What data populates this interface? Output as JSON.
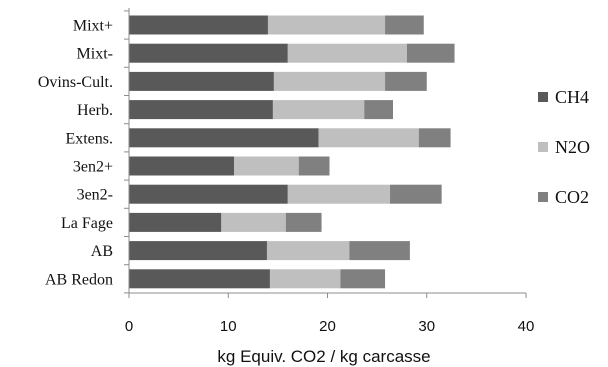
{
  "chart_data": {
    "type": "bar",
    "orientation": "horizontal",
    "stacked": true,
    "title": "",
    "xlabel": "kg Equiv. CO2 / kg carcasse",
    "ylabel": "",
    "xlim": [
      0,
      40
    ],
    "xticks": [
      0,
      10,
      20,
      30,
      40
    ],
    "grid": false,
    "legend_position": "right",
    "categories": [
      "Mixt+",
      "Mixt-",
      "Ovins-Cult.",
      "Herb.",
      "Extens.",
      "3en2+",
      "3en2-",
      "La Fage",
      "AB",
      "AB Redon"
    ],
    "series": [
      {
        "name": "CH4",
        "color": "#595959",
        "values": [
          14.0,
          16.0,
          14.6,
          14.5,
          19.1,
          10.6,
          16.0,
          9.3,
          13.9,
          14.2
        ]
      },
      {
        "name": "N2O",
        "color": "#bfbfbf",
        "values": [
          11.8,
          12.0,
          11.2,
          9.2,
          10.1,
          6.5,
          10.3,
          6.5,
          8.3,
          7.1
        ]
      },
      {
        "name": "CO2",
        "color": "#808080",
        "values": [
          3.9,
          4.8,
          4.2,
          2.9,
          3.2,
          3.1,
          5.2,
          3.6,
          6.1,
          4.5
        ]
      }
    ]
  }
}
